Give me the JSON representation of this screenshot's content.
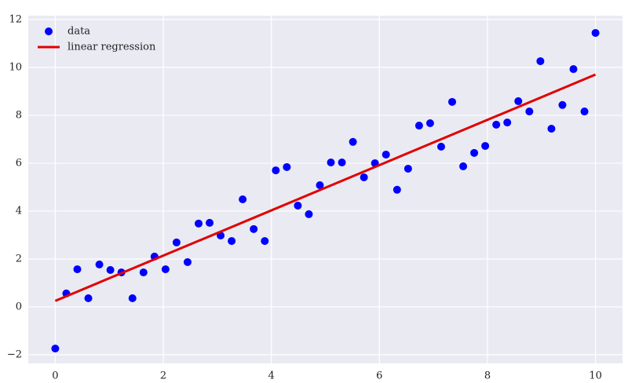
{
  "chart_data": {
    "type": "scatter",
    "xlim": [
      -0.5,
      10.5
    ],
    "ylim": [
      -2.36,
      12.16
    ],
    "xticks": [
      0,
      2,
      4,
      6,
      8,
      10
    ],
    "yticks": [
      {
        "value": -2,
        "label": "−2"
      },
      0,
      2,
      4,
      6,
      8,
      10,
      12
    ],
    "grid": true,
    "legend": "upper left",
    "series": [
      {
        "name": "data",
        "type": "scatter",
        "color": "#0000ff",
        "x": [
          0,
          0.204,
          0.408,
          0.612,
          0.816,
          1.02,
          1.224,
          1.429,
          1.633,
          1.837,
          2.041,
          2.245,
          2.449,
          2.653,
          2.857,
          3.061,
          3.265,
          3.469,
          3.673,
          3.878,
          4.082,
          4.286,
          4.49,
          4.694,
          4.898,
          5.102,
          5.306,
          5.51,
          5.714,
          5.918,
          6.122,
          6.327,
          6.531,
          6.735,
          6.939,
          7.143,
          7.347,
          7.551,
          7.755,
          7.959,
          8.163,
          8.367,
          8.571,
          8.776,
          8.98,
          9.184,
          9.388,
          9.592,
          9.796,
          10
        ],
        "y": [
          -1.74,
          0.56,
          1.57,
          0.36,
          1.77,
          1.54,
          1.44,
          0.36,
          1.44,
          2.1,
          1.57,
          2.69,
          1.87,
          3.48,
          3.51,
          2.98,
          2.75,
          4.49,
          3.25,
          2.75,
          5.7,
          5.84,
          4.23,
          3.87,
          5.08,
          6.03,
          6.03,
          6.89,
          5.41,
          6.0,
          6.36,
          4.89,
          5.77,
          7.57,
          7.67,
          6.69,
          8.56,
          5.87,
          6.43,
          6.72,
          7.61,
          7.7,
          8.59,
          8.16,
          10.26,
          7.44,
          8.43,
          9.93,
          8.16,
          11.44
        ]
      },
      {
        "name": "linear regression",
        "type": "line",
        "color": "#e00000",
        "x": [
          0,
          10
        ],
        "y": [
          0.25,
          9.7
        ]
      }
    ]
  }
}
